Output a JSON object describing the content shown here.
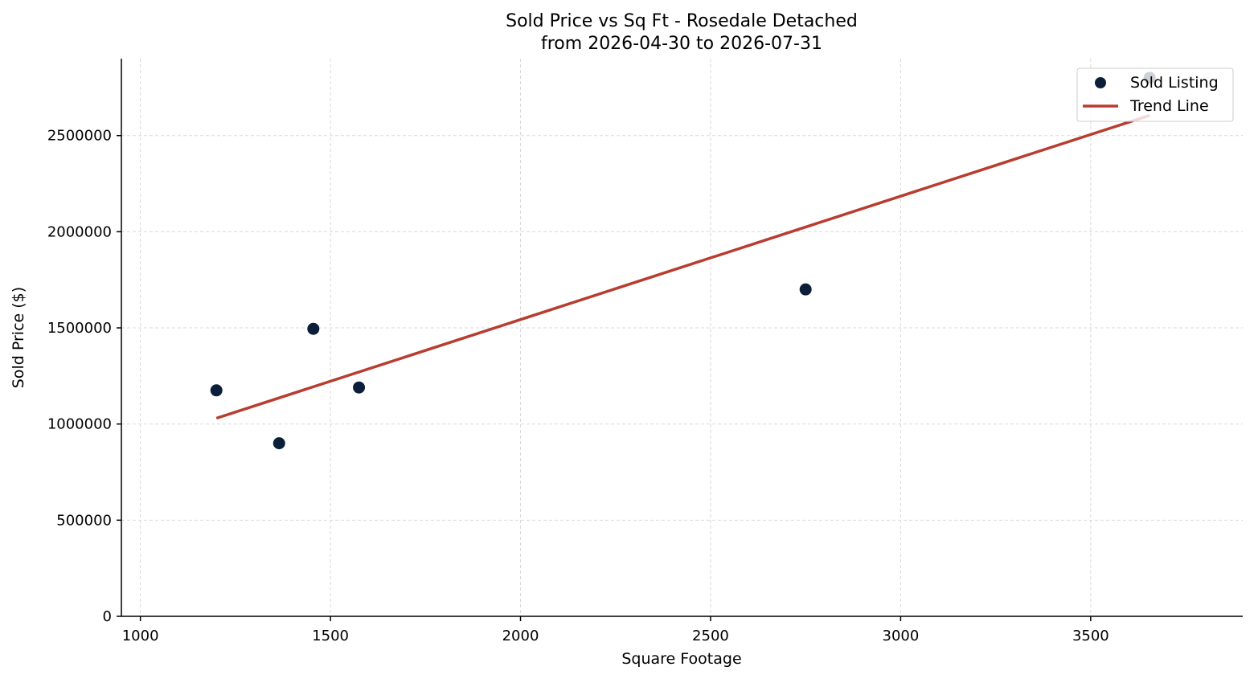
{
  "chart_data": {
    "type": "scatter",
    "title": "Sold Price vs Sq Ft - Rosedale Detached",
    "subtitle": "from 2026-04-30 to 2026-07-31",
    "xlabel": "Square Footage",
    "ylabel": "Sold Price ($)",
    "xlim": [
      950,
      3900
    ],
    "ylim": [
      0,
      2900000
    ],
    "xticks": [
      1000,
      1500,
      2000,
      2500,
      3000,
      3500
    ],
    "yticks": [
      0,
      500000,
      1000000,
      1500000,
      2000000,
      2500000
    ],
    "grid": true,
    "legend_position": "top-right",
    "series": [
      {
        "name": "Sold Listing",
        "kind": "scatter",
        "color": "#0b1f3a",
        "x": [
          1200,
          1365,
          1455,
          1575,
          2750,
          3655
        ],
        "y": [
          1175000,
          900000,
          1495000,
          1190000,
          1700000,
          2800000
        ]
      },
      {
        "name": "Trend Line",
        "kind": "line",
        "color": "#b83c30",
        "x": [
          1200,
          3655
        ],
        "y": [
          1030000,
          2605000
        ]
      }
    ]
  }
}
